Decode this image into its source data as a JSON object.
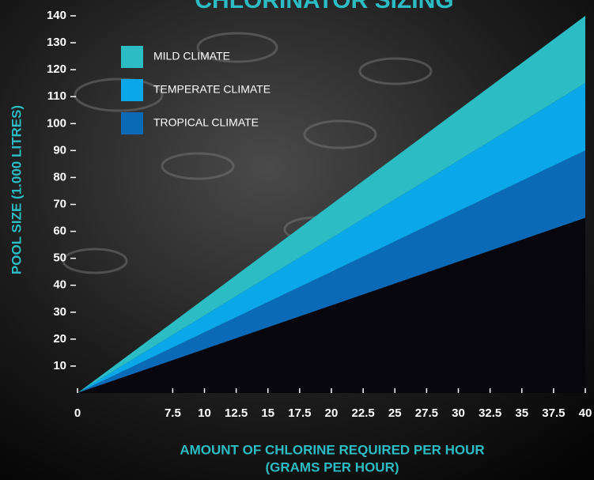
{
  "chart_data": {
    "type": "area",
    "title": "CHLORINATOR SIZING",
    "x_label": [
      "AMOUNT OF CHLORINE REQUIRED PER HOUR",
      "(GRAMS PER HOUR)"
    ],
    "y_label": "POOL SIZE (1.000 LITRES)",
    "x": [
      0,
      40
    ],
    "base_values": [
      0,
      65
    ],
    "series": [
      {
        "name": "MILD CLIMATE",
        "color": "#2bbcc4",
        "values": [
          0,
          140
        ]
      },
      {
        "name": "TEMPERATE CLIMATE",
        "color": "#0aa8e8",
        "values": [
          0,
          115
        ]
      },
      {
        "name": "TROPICAL CLIMATE",
        "color": "#0a6ab8",
        "values": [
          0,
          90
        ]
      }
    ],
    "xlim": [
      0,
      40
    ],
    "xticks": [
      0,
      7.5,
      10,
      12.5,
      15,
      17.5,
      20,
      22.5,
      25,
      27.5,
      30,
      32.5,
      35,
      37.5,
      40
    ],
    "ylim": [
      0,
      140
    ],
    "yticks": [
      10,
      20,
      30,
      40,
      50,
      60,
      70,
      80,
      90,
      100,
      110,
      120,
      130,
      140
    ],
    "legend": "top-left"
  }
}
